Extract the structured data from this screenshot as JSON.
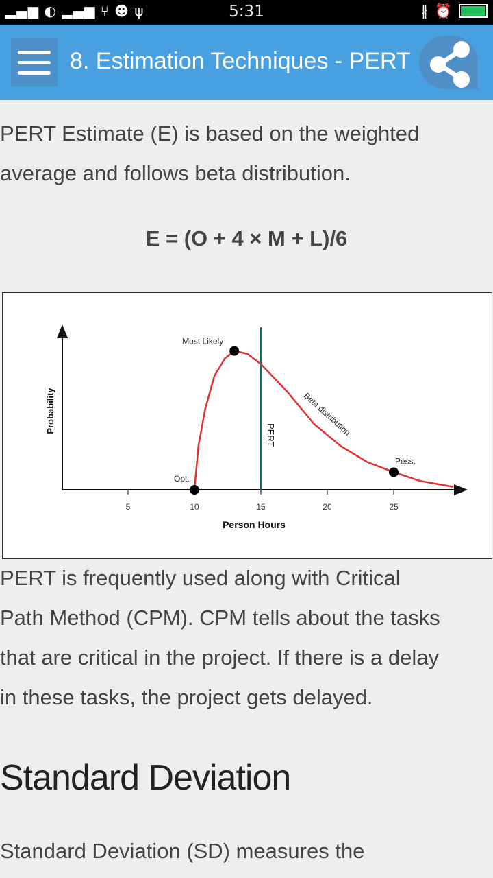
{
  "status_bar": {
    "time": "5:31",
    "left_icons": [
      "signal-icon",
      "carrier-logo",
      "signal-icon",
      "network-icon",
      "android-icon",
      "usb-icon"
    ],
    "right_icons": [
      "bluetooth-icon",
      "alarm-icon",
      "battery-charging-icon"
    ]
  },
  "app_bar": {
    "title": "8. Estimation Techniques - PERT",
    "color": "#48a0e0"
  },
  "content": {
    "intro_lines": [
      "PERT Estimate (E) is based on the weighted",
      "average and follows beta distribution."
    ],
    "formula": "E = (O + 4 × M + L)/6",
    "para_lines": [
      "PERT is frequently used along with Critical",
      "Path Method (CPM). CPM tells about the tasks",
      "that are critical in the project. If there is a delay",
      "in these tasks, the project gets delayed."
    ],
    "heading": "Standard Deviation",
    "last_line": "Standard Deviation (SD) measures the"
  },
  "chart_data": {
    "type": "line",
    "xlabel": "Person Hours",
    "ylabel": "Probability",
    "x_ticks": [
      5,
      10,
      15,
      20,
      25
    ],
    "x": [
      10,
      10.3,
      10.8,
      11.5,
      12.3,
      13,
      14,
      15,
      17,
      19,
      21,
      23,
      25,
      27,
      29.5
    ],
    "y": [
      0,
      0.3,
      0.55,
      0.78,
      0.9,
      0.95,
      0.93,
      0.86,
      0.67,
      0.45,
      0.3,
      0.19,
      0.12,
      0.06,
      0.02
    ],
    "curve_color": "#e0302f",
    "pert_line": {
      "x": 15,
      "label": "PERT",
      "color": "#0f7070"
    },
    "points": [
      {
        "x": 10,
        "y": 0,
        "label": "Opt."
      },
      {
        "x": 13,
        "y": 0.95,
        "label": "Most Likely"
      },
      {
        "x": 25,
        "y": 0.12,
        "label": "Pess."
      }
    ],
    "curve_label": "Beta distribution"
  }
}
